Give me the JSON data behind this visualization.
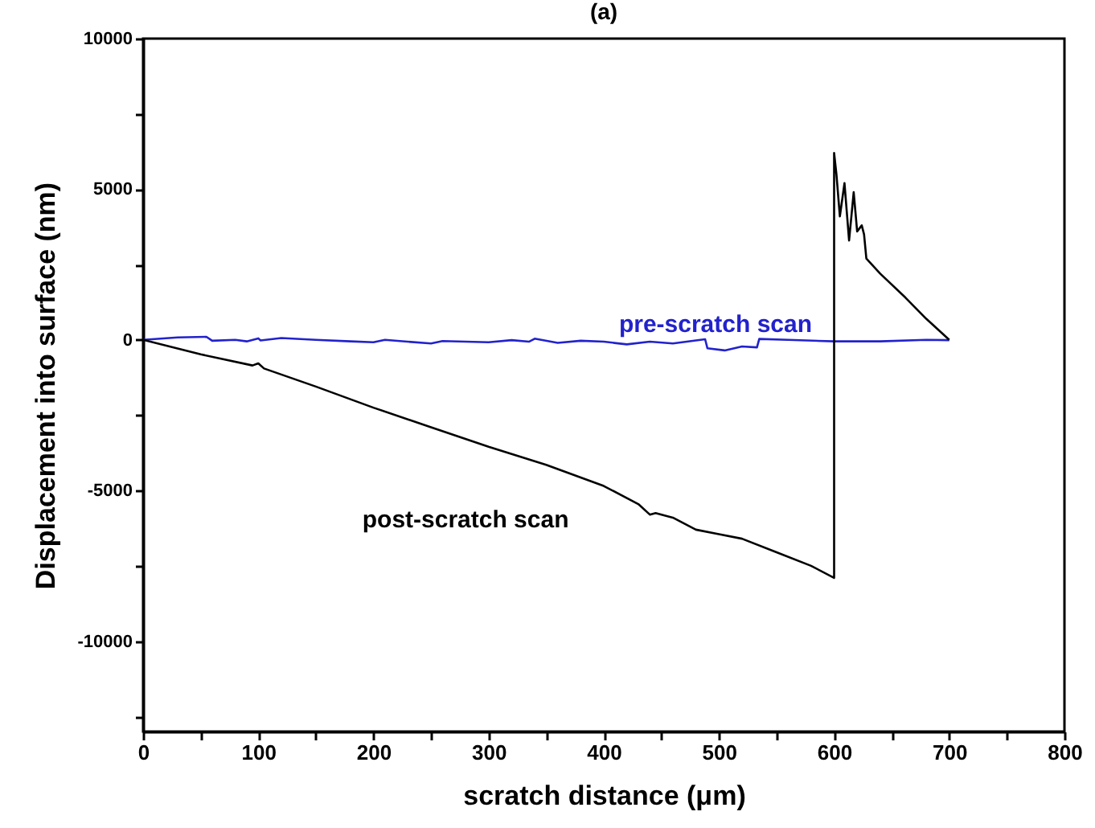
{
  "chart_data": {
    "type": "line",
    "title": "(a)",
    "xlabel": "scratch distance (μm)",
    "ylabel": "Displacement into surface (nm)",
    "xlim": [
      0,
      800
    ],
    "xticks": [
      0,
      {
        "value": 50,
        "label": null
      },
      100,
      {
        "value": 150,
        "label": null
      },
      200,
      {
        "value": 250,
        "label": null
      },
      300,
      {
        "value": 350,
        "label": null
      },
      400,
      {
        "value": 450,
        "label": null
      },
      500,
      {
        "value": 550,
        "label": null
      },
      600,
      {
        "value": 650,
        "label": null
      },
      700,
      {
        "value": 750,
        "label": null
      },
      800
    ],
    "ylim": [
      -13000,
      10000
    ],
    "yticks": [
      {
        "value": -12500,
        "label": null
      },
      -10000,
      {
        "value": -7500,
        "label": null
      },
      -5000,
      {
        "value": -2500,
        "label": null
      },
      0,
      {
        "value": 2500,
        "label": null
      },
      5000,
      {
        "value": 7500,
        "label": null
      },
      10000
    ],
    "grid": false,
    "legend": false,
    "marker": "none",
    "line_style": "solid",
    "series": [
      {
        "name": "pre-scratch scan",
        "color": "#2222cc",
        "x": [
          0,
          30,
          55,
          60,
          80,
          90,
          100,
          102,
          120,
          150,
          180,
          200,
          210,
          250,
          260,
          300,
          320,
          335,
          340,
          360,
          380,
          400,
          420,
          440,
          460,
          488,
          490,
          505,
          520,
          533,
          535,
          560,
          600,
          640,
          680,
          700
        ],
        "values": [
          0,
          80,
          100,
          -30,
          0,
          -50,
          50,
          -20,
          60,
          0,
          -50,
          -80,
          0,
          -120,
          -40,
          -80,
          -10,
          -60,
          40,
          -100,
          -30,
          -60,
          -150,
          -60,
          -120,
          20,
          -280,
          -350,
          -220,
          -250,
          30,
          0,
          -50,
          -50,
          0,
          -10
        ]
      },
      {
        "name": "post-scratch scan",
        "color": "#000000",
        "x": [
          0,
          50,
          95,
          100,
          105,
          150,
          200,
          250,
          300,
          350,
          400,
          430,
          440,
          445,
          460,
          480,
          500,
          520,
          550,
          580,
          600,
          600,
          602,
          605,
          609,
          613,
          617,
          620,
          624,
          626,
          628,
          640,
          662,
          680,
          700
        ],
        "values": [
          0,
          -480,
          -850,
          -780,
          -950,
          -1550,
          -2250,
          -2900,
          -3550,
          -4150,
          -4850,
          -5450,
          -5800,
          -5750,
          -5900,
          -6300,
          -6450,
          -6600,
          -7050,
          -7500,
          -7900,
          6200,
          5500,
          4100,
          5200,
          3300,
          4900,
          3600,
          3800,
          3500,
          2700,
          2200,
          1400,
          700,
          0
        ]
      }
    ]
  }
}
